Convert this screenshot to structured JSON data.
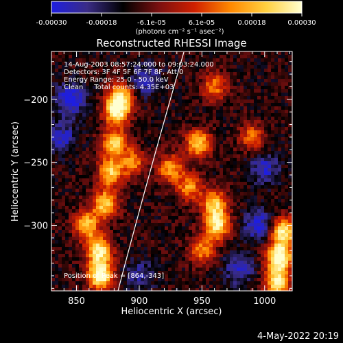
{
  "chart_data": {
    "type": "heatmap",
    "title": "Reconstructed RHESSI Image",
    "xlabel": "Heliocentric X (arcsec)",
    "ylabel": "Heliocentric Y (arcsec)",
    "xlim": [
      830,
      1022
    ],
    "ylim": [
      -352,
      -162
    ],
    "xticks": [
      850,
      900,
      950,
      1000
    ],
    "yticks": [
      -200,
      -250,
      -300
    ],
    "colorbar": {
      "range": [
        -0.0003,
        0.0003
      ],
      "tick_labels": [
        "-0.00030",
        "-0.00018",
        "-6.1e-05",
        "6.1e-05",
        "0.00018",
        "0.00030"
      ],
      "unit_label": "(photons cm⁻² s⁻¹ asec⁻²)",
      "colormap": [
        "#1e1ee0",
        "#3a2c86",
        "#000000",
        "#7a1010",
        "#d02000",
        "#ff8800",
        "#ffd040",
        "#ffffd0"
      ]
    },
    "annotations": {
      "line1": "14-Aug-2003 08:57:24.000 to 09:03:24.000",
      "line2": "Detectors: 3F 4F 5F 6F 7F 8F, Att 0",
      "line3": "Energy Range: 25.0 - 50.0 keV",
      "line4": "Clean     Total counts: 4.35E+03",
      "peak": "Position of Peak = [864,-343]"
    },
    "date_stamp": "4-May-2022 20:19",
    "hot_regions": [
      {
        "x": 869,
        "y": -340,
        "intensity": 1.0
      },
      {
        "x": 868,
        "y": -320,
        "intensity": 0.85
      },
      {
        "x": 858,
        "y": -300,
        "intensity": 0.7
      },
      {
        "x": 873,
        "y": -283,
        "intensity": 0.75
      },
      {
        "x": 877,
        "y": -258,
        "intensity": 0.7
      },
      {
        "x": 880,
        "y": -235,
        "intensity": 0.75
      },
      {
        "x": 882,
        "y": -210,
        "intensity": 0.8
      },
      {
        "x": 885,
        "y": -198,
        "intensity": 0.75
      },
      {
        "x": 895,
        "y": -250,
        "intensity": 0.5
      },
      {
        "x": 925,
        "y": -255,
        "intensity": 0.6
      },
      {
        "x": 947,
        "y": -235,
        "intensity": 0.7
      },
      {
        "x": 940,
        "y": -270,
        "intensity": 0.55
      },
      {
        "x": 960,
        "y": -283,
        "intensity": 0.7
      },
      {
        "x": 962,
        "y": -300,
        "intensity": 0.8
      },
      {
        "x": 950,
        "y": -320,
        "intensity": 0.55
      },
      {
        "x": 1012,
        "y": -325,
        "intensity": 1.0
      },
      {
        "x": 1015,
        "y": -305,
        "intensity": 0.85
      },
      {
        "x": 1010,
        "y": -345,
        "intensity": 0.85
      },
      {
        "x": 960,
        "y": -190,
        "intensity": 0.5
      },
      {
        "x": 990,
        "y": -230,
        "intensity": 0.45
      }
    ],
    "cold_regions": [
      {
        "x": 845,
        "y": -200,
        "intensity": 0.8
      },
      {
        "x": 838,
        "y": -230,
        "intensity": 0.6
      },
      {
        "x": 905,
        "y": -185,
        "intensity": 0.6
      },
      {
        "x": 995,
        "y": -300,
        "intensity": 0.7
      },
      {
        "x": 1000,
        "y": -255,
        "intensity": 0.6
      },
      {
        "x": 980,
        "y": -335,
        "intensity": 0.6
      },
      {
        "x": 900,
        "y": -340,
        "intensity": 0.45
      }
    ]
  }
}
